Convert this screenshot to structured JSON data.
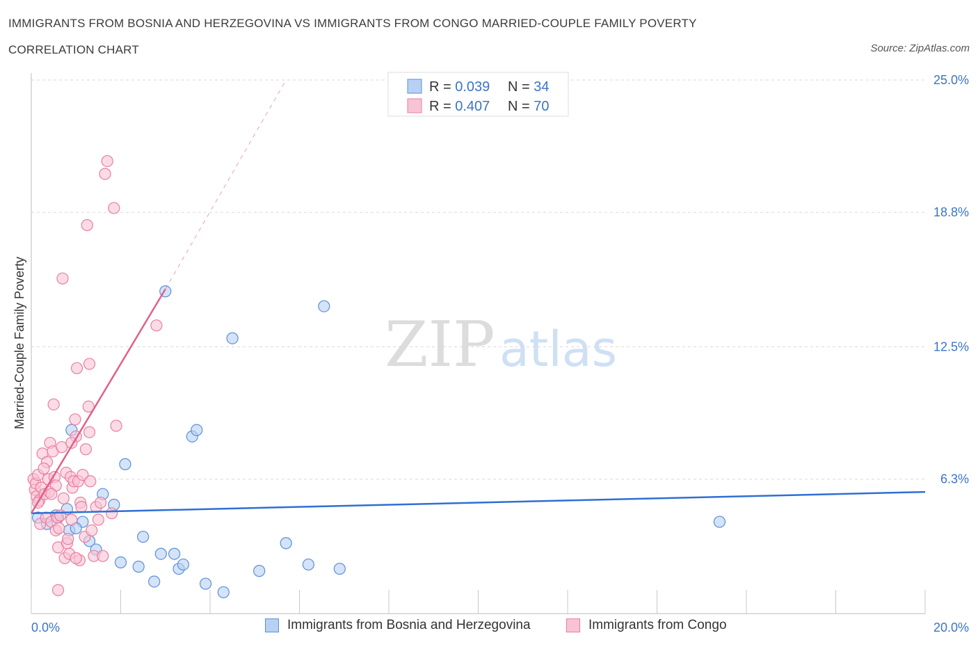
{
  "title_line1": "IMMIGRANTS FROM BOSNIA AND HERZEGOVINA VS IMMIGRANTS FROM CONGO MARRIED-COUPLE FAMILY POVERTY",
  "title_line2": "CORRELATION CHART",
  "source": "Source: ZipAtlas.com",
  "watermark": {
    "zip": "ZIP",
    "atlas": "atlas"
  },
  "colors": {
    "blue_fill": "#b8d0f4",
    "blue_stroke": "#5b8fd8",
    "blue_line": "#2e6fd4",
    "pink_fill": "#f9c3d3",
    "pink_stroke": "#e87fa0",
    "pink_line": "#e0608c",
    "axis_label": "#3a74c8",
    "grid": "#d9d9d9"
  },
  "legend_top": [
    {
      "r_label": "R = ",
      "r_value": "0.039",
      "n_label": "N = ",
      "n_value": "34",
      "series": "bosnia"
    },
    {
      "r_label": "R = ",
      "r_value": "0.407",
      "n_label": "N = ",
      "n_value": "70",
      "series": "congo"
    }
  ],
  "legend_bottom": [
    {
      "label": "Immigrants from Bosnia and Herzegovina",
      "series": "bosnia"
    },
    {
      "label": "Immigrants from Congo",
      "series": "congo"
    }
  ],
  "chart_data": {
    "type": "scatter",
    "ylabel": "Married-Couple Family Poverty",
    "xlim": [
      0,
      20
    ],
    "ylim": [
      0,
      25
    ],
    "x_tick_labels": [
      {
        "value": 0,
        "label": "0.0%"
      },
      {
        "value": 20,
        "label": "20.0%"
      }
    ],
    "y_tick_labels": [
      {
        "value": 6.3,
        "label": "6.3%"
      },
      {
        "value": 12.5,
        "label": "12.5%"
      },
      {
        "value": 18.8,
        "label": "18.8%"
      },
      {
        "value": 25.0,
        "label": "25.0%"
      }
    ],
    "grid": true,
    "legend_placement": "top-center",
    "series": [
      {
        "name": "Immigrants from Bosnia and Herzegovina",
        "key": "bosnia",
        "r": 0.039,
        "n": 34,
        "trend": {
          "x": [
            0,
            20
          ],
          "y": [
            4.7,
            5.7
          ]
        },
        "points": [
          [
            0.15,
            4.5
          ],
          [
            0.35,
            4.2
          ],
          [
            0.55,
            4.6
          ],
          [
            0.6,
            4.5
          ],
          [
            0.8,
            4.9
          ],
          [
            0.85,
            3.9
          ],
          [
            1.15,
            4.3
          ],
          [
            1.3,
            3.4
          ],
          [
            1.45,
            3.0
          ],
          [
            1.6,
            5.6
          ],
          [
            1.85,
            5.1
          ],
          [
            2.0,
            2.4
          ],
          [
            2.1,
            7.0
          ],
          [
            2.4,
            2.2
          ],
          [
            2.5,
            3.6
          ],
          [
            2.75,
            1.5
          ],
          [
            2.9,
            2.8
          ],
          [
            3.0,
            15.1
          ],
          [
            3.2,
            2.8
          ],
          [
            3.3,
            2.1
          ],
          [
            3.4,
            2.3
          ],
          [
            3.6,
            8.3
          ],
          [
            3.7,
            8.6
          ],
          [
            3.9,
            1.4
          ],
          [
            4.3,
            1.0
          ],
          [
            4.5,
            12.9
          ],
          [
            5.1,
            2.0
          ],
          [
            5.7,
            3.3
          ],
          [
            6.2,
            2.3
          ],
          [
            6.55,
            14.4
          ],
          [
            6.9,
            2.1
          ],
          [
            15.4,
            4.3
          ],
          [
            0.9,
            8.6
          ],
          [
            1.0,
            4.0
          ]
        ]
      },
      {
        "name": "Immigrants from Congo",
        "key": "congo",
        "r": 0.407,
        "n": 70,
        "trend": {
          "x": [
            0,
            3.0
          ],
          "y": [
            4.7,
            15.2
          ]
        },
        "trend_extended": {
          "x": [
            3.0,
            5.7
          ],
          "y": [
            15.2,
            25.0
          ]
        },
        "points": [
          [
            0.05,
            6.3
          ],
          [
            0.08,
            5.8
          ],
          [
            0.1,
            6.1
          ],
          [
            0.12,
            5.5
          ],
          [
            0.15,
            6.5
          ],
          [
            0.18,
            5.3
          ],
          [
            0.2,
            4.2
          ],
          [
            0.22,
            5.9
          ],
          [
            0.25,
            7.5
          ],
          [
            0.3,
            5.6
          ],
          [
            0.33,
            4.5
          ],
          [
            0.35,
            7.1
          ],
          [
            0.38,
            6.3
          ],
          [
            0.4,
            5.7
          ],
          [
            0.42,
            8.0
          ],
          [
            0.45,
            4.3
          ],
          [
            0.48,
            7.6
          ],
          [
            0.5,
            9.8
          ],
          [
            0.52,
            6.4
          ],
          [
            0.55,
            3.9
          ],
          [
            0.58,
            4.5
          ],
          [
            0.6,
            3.1
          ],
          [
            0.62,
            4.0
          ],
          [
            0.65,
            4.6
          ],
          [
            0.7,
            15.7
          ],
          [
            0.72,
            5.4
          ],
          [
            0.75,
            2.6
          ],
          [
            0.78,
            6.6
          ],
          [
            0.8,
            3.3
          ],
          [
            0.85,
            2.8
          ],
          [
            0.88,
            6.4
          ],
          [
            0.9,
            4.4
          ],
          [
            0.92,
            5.9
          ],
          [
            0.95,
            6.2
          ],
          [
            0.98,
            9.1
          ],
          [
            1.0,
            8.3
          ],
          [
            1.02,
            11.5
          ],
          [
            1.05,
            6.2
          ],
          [
            1.08,
            2.5
          ],
          [
            1.1,
            5.2
          ],
          [
            1.12,
            5.0
          ],
          [
            1.15,
            6.5
          ],
          [
            1.2,
            3.6
          ],
          [
            1.22,
            7.7
          ],
          [
            1.25,
            18.2
          ],
          [
            1.28,
            9.7
          ],
          [
            1.3,
            11.7
          ],
          [
            1.32,
            6.2
          ],
          [
            1.35,
            3.9
          ],
          [
            1.4,
            2.7
          ],
          [
            1.45,
            5.0
          ],
          [
            1.5,
            4.4
          ],
          [
            1.55,
            5.2
          ],
          [
            1.6,
            2.7
          ],
          [
            1.3,
            8.5
          ],
          [
            1.65,
            20.6
          ],
          [
            1.7,
            21.2
          ],
          [
            1.8,
            4.7
          ],
          [
            1.85,
            19.0
          ],
          [
            1.9,
            8.8
          ],
          [
            2.8,
            13.5
          ],
          [
            0.55,
            6.0
          ],
          [
            0.68,
            7.8
          ],
          [
            0.82,
            3.5
          ],
          [
            0.6,
            1.1
          ],
          [
            0.15,
            5.2
          ],
          [
            0.28,
            6.8
          ],
          [
            1.0,
            2.6
          ],
          [
            0.45,
            5.6
          ],
          [
            0.9,
            8.0
          ]
        ]
      }
    ]
  }
}
